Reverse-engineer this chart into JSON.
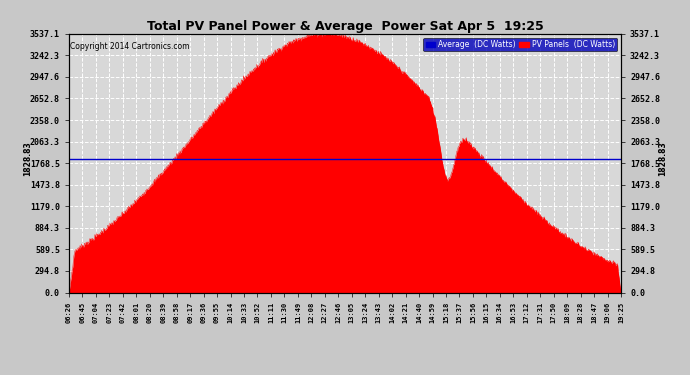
{
  "title": "Total PV Panel Power & Average  Power Sat Apr 5  19:25",
  "copyright": "Copyright 2014 Cartronics.com",
  "average_value": 1828.83,
  "y_max": 3537.1,
  "y_ticks": [
    0.0,
    294.8,
    589.5,
    884.3,
    1179.0,
    1473.8,
    1768.5,
    2063.3,
    2358.0,
    2652.8,
    2947.6,
    3242.3,
    3537.1
  ],
  "bg_color": "#c8c8c8",
  "plot_bg_color": "#d8d8d8",
  "fill_color": "#ff0000",
  "avg_line_color": "#0000cc",
  "grid_color": "#ffffff",
  "x_labels": [
    "06:26",
    "06:45",
    "07:04",
    "07:23",
    "07:42",
    "08:01",
    "08:20",
    "08:39",
    "08:58",
    "09:17",
    "09:36",
    "09:55",
    "10:14",
    "10:33",
    "10:52",
    "11:11",
    "11:30",
    "11:49",
    "12:08",
    "12:27",
    "12:46",
    "13:05",
    "13:24",
    "13:43",
    "14:02",
    "14:21",
    "14:40",
    "14:59",
    "15:18",
    "15:37",
    "15:56",
    "16:15",
    "16:34",
    "16:53",
    "17:12",
    "17:31",
    "17:50",
    "18:09",
    "18:28",
    "18:47",
    "19:06",
    "19:25"
  ],
  "legend_avg_label": "Average  (DC Watts)",
  "legend_pv_label": "PV Panels  (DC Watts)"
}
